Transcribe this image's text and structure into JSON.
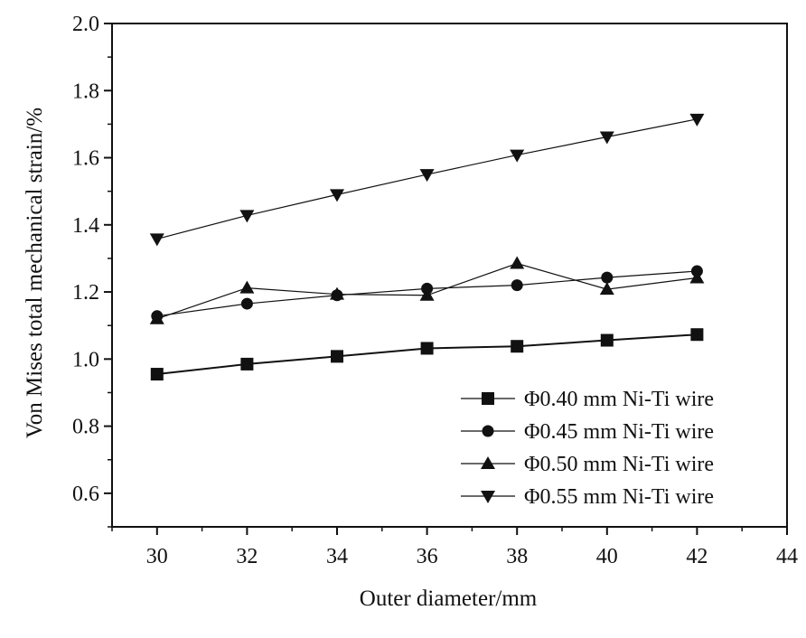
{
  "chart_data": {
    "type": "line",
    "xlabel": "Outer diameter/mm",
    "ylabel": "Von Mises total mechanical strain/%",
    "xlim": [
      29,
      44
    ],
    "ylim": [
      0.5,
      2.0
    ],
    "x_ticks": [
      "30",
      "32",
      "34",
      "36",
      "38",
      "40",
      "42",
      "44"
    ],
    "y_ticks": [
      "0.6",
      "0.8",
      "1.0",
      "1.2",
      "1.4",
      "1.6",
      "1.8",
      "2.0"
    ],
    "x": [
      30,
      32,
      34,
      36,
      38,
      40,
      42
    ],
    "legend_position": "bottom-right",
    "grid": false,
    "series": [
      {
        "name": "Φ0.40 mm Ni-Ti wire",
        "marker": "square",
        "values": [
          0.955,
          0.985,
          1.008,
          1.032,
          1.038,
          1.056,
          1.073
        ]
      },
      {
        "name": "Φ0.45 mm Ni-Ti wire",
        "marker": "circle",
        "values": [
          1.128,
          1.165,
          1.19,
          1.21,
          1.22,
          1.243,
          1.262
        ]
      },
      {
        "name": "Φ0.50 mm Ni-Ti wire",
        "marker": "triangle-up",
        "values": [
          1.12,
          1.212,
          1.193,
          1.19,
          1.285,
          1.208,
          1.242
        ]
      },
      {
        "name": "Φ0.55 mm Ni-Ti wire",
        "marker": "triangle-down",
        "values": [
          1.358,
          1.428,
          1.49,
          1.55,
          1.608,
          1.662,
          1.715
        ]
      }
    ]
  }
}
